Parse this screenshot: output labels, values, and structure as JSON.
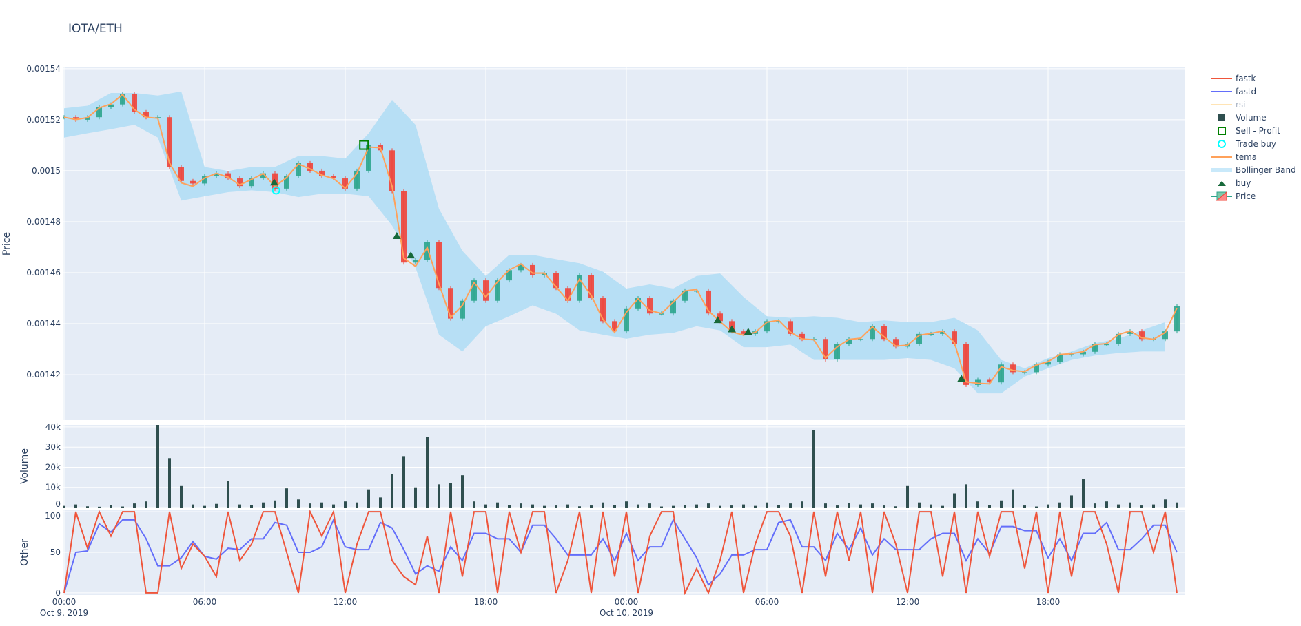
{
  "title": "IOTA/ETH",
  "chart_data": {
    "type": "candlestick",
    "title": "IOTA/ETH",
    "start": "2019-10-09T00:00",
    "interval_minutes": 30,
    "x_ticks": [
      {
        "time": "2019-10-09T00:00",
        "label": "00:00",
        "sublabel": "Oct 9, 2019"
      },
      {
        "time": "2019-10-09T06:00",
        "label": "06:00",
        "sublabel": ""
      },
      {
        "time": "2019-10-09T12:00",
        "label": "12:00",
        "sublabel": ""
      },
      {
        "time": "2019-10-09T18:00",
        "label": "18:00",
        "sublabel": ""
      },
      {
        "time": "2019-10-10T00:00",
        "label": "00:00",
        "sublabel": "Oct 10, 2019"
      },
      {
        "time": "2019-10-10T06:00",
        "label": "06:00",
        "sublabel": ""
      },
      {
        "time": "2019-10-10T12:00",
        "label": "12:00",
        "sublabel": ""
      },
      {
        "time": "2019-10-10T18:00",
        "label": "18:00",
        "sublabel": ""
      }
    ],
    "panels": {
      "price": {
        "ylabel": "Price",
        "ylim": [
          0.0014022,
          0.0015405
        ],
        "ticks": [
          {
            "value": 0.00154,
            "label": "0.00154"
          },
          {
            "value": 0.00152,
            "label": "0.00152"
          },
          {
            "value": 0.0015,
            "label": "0.0015"
          },
          {
            "value": 0.00148,
            "label": "0.00148"
          },
          {
            "value": 0.00146,
            "label": "0.00146"
          },
          {
            "value": 0.00144,
            "label": "0.00144"
          },
          {
            "value": 0.00142,
            "label": "0.00142"
          }
        ]
      },
      "volume": {
        "ylabel": "Volume",
        "ylim": [
          0,
          41000
        ],
        "ticks": [
          {
            "value": 0,
            "label": "0"
          },
          {
            "value": 10000,
            "label": "10k"
          },
          {
            "value": 20000,
            "label": "20k"
          },
          {
            "value": 30000,
            "label": "30k"
          },
          {
            "value": 40000,
            "label": "40k"
          }
        ]
      },
      "other": {
        "ylabel": "Other",
        "ylim": [
          -2.6,
          102.6
        ],
        "ticks": [
          {
            "value": 0,
            "label": "0"
          },
          {
            "value": 50,
            "label": "50"
          },
          {
            "value": 100,
            "label": "100"
          }
        ]
      }
    },
    "close": [
      0.001521,
      0.00152,
      0.001521,
      0.001525,
      0.001526,
      0.00153,
      0.001523,
      0.001521,
      0.001521,
      0.0015015,
      0.001496,
      0.001495,
      0.001498,
      0.001499,
      0.001497,
      0.001494,
      0.001497,
      0.001499,
      0.001493,
      0.001498,
      0.001503,
      0.0015,
      0.001498,
      0.001497,
      0.001493,
      0.0015,
      0.00151,
      0.001508,
      0.001492,
      0.001464,
      0.001465,
      0.001472,
      0.001454,
      0.001442,
      0.001449,
      0.001457,
      0.001449,
      0.001457,
      0.001461,
      0.001463,
      0.001459,
      0.00146,
      0.001454,
      0.001449,
      0.001459,
      0.00145,
      0.001441,
      0.001437,
      0.001446,
      0.00145,
      0.001444,
      0.001444,
      0.001449,
      0.001453,
      0.001453,
      0.001444,
      0.001441,
      0.001437,
      0.001436,
      0.001437,
      0.001441,
      0.001441,
      0.001436,
      0.001434,
      0.001434,
      0.001426,
      0.001432,
      0.001434,
      0.001434,
      0.001439,
      0.001434,
      0.001431,
      0.001432,
      0.001436,
      0.001436,
      0.001437,
      0.001432,
      0.001416,
      0.001418,
      0.001417,
      0.001424,
      0.001421,
      0.001421,
      0.001424,
      0.001425,
      0.001428,
      0.001428,
      0.001429,
      0.001432,
      0.001432,
      0.001436,
      0.001437,
      0.001434,
      0.001434,
      0.001437,
      0.001447
    ],
    "bollinger_hourly": {
      "upper": [
        0.0015245,
        0.0015255,
        0.0015305,
        0.0015305,
        0.0015295,
        0.0015311,
        0.0015015,
        0.0014999,
        0.0015015,
        0.0015015,
        0.0015058,
        0.0015058,
        0.0015048,
        0.0015147,
        0.0015278,
        0.001518,
        0.0014851,
        0.0014686,
        0.0014587,
        0.001467,
        0.001467,
        0.0014653,
        0.0014637,
        0.0014604,
        0.0014538,
        0.0014554,
        0.0014538,
        0.0014587,
        0.0014597,
        0.0014505,
        0.0014429,
        0.0014423,
        0.0014429,
        0.0014423,
        0.0014406,
        0.0014413,
        0.0014406,
        0.0014406,
        0.0014423,
        0.0014374,
        0.0014258,
        0.0014225,
        0.0014265,
        0.0014291,
        0.0014324,
        0.0014341,
        0.0014374,
        0.0014406
      ],
      "lower": [
        0.001513,
        0.0015147,
        0.0015163,
        0.001518,
        0.001513,
        0.0014883,
        0.00149,
        0.0014916,
        0.0014923,
        0.0014916,
        0.0014897,
        0.001491,
        0.001491,
        0.00149,
        0.0014785,
        0.001462,
        0.0014357,
        0.0014291,
        0.001439,
        0.0014429,
        0.0014472,
        0.0014439,
        0.0014374,
        0.0014357,
        0.0014341,
        0.0014357,
        0.0014364,
        0.001439,
        0.0014374,
        0.0014308,
        0.0014308,
        0.0014318,
        0.0014258,
        0.0014258,
        0.0014258,
        0.0014258,
        0.0014265,
        0.0014258,
        0.0014225,
        0.0014127,
        0.0014127,
        0.0014193,
        0.0014225,
        0.0014258,
        0.0014275,
        0.0014285,
        0.0014291,
        0.0014291
      ]
    },
    "volume": [
      800,
      1500,
      600,
      400,
      1200,
      500,
      2000,
      3000,
      41000,
      24500,
      11000,
      1500,
      800,
      1800,
      13000,
      1500,
      1200,
      2500,
      3500,
      9500,
      4000,
      2000,
      2500,
      1500,
      3000,
      2500,
      9000,
      5000,
      16500,
      25500,
      10000,
      35000,
      11500,
      12000,
      16000,
      3000,
      1500,
      2500,
      1200,
      2000,
      1500,
      800,
      1000,
      1500,
      600,
      1000,
      2500,
      1200,
      3000,
      1500,
      2000,
      500,
      800,
      1200,
      1500,
      2000,
      800,
      1000,
      1500,
      800,
      2500,
      1200,
      2000,
      3000,
      38500,
      2000,
      1000,
      2200,
      1500,
      2000,
      1000,
      600,
      11000,
      2500,
      1500,
      800,
      7000,
      11500,
      3000,
      1200,
      3500,
      9000,
      1000,
      500,
      1500,
      2500,
      6000,
      14000,
      2000,
      3000,
      1500,
      2500,
      1000,
      1500,
      4000,
      2500
    ],
    "fastk": [
      0,
      100,
      55,
      100,
      70,
      100,
      100,
      0,
      0,
      100,
      30,
      60,
      45,
      20,
      100,
      40,
      60,
      100,
      100,
      50,
      0,
      100,
      70,
      100,
      0,
      60,
      100,
      100,
      40,
      20,
      10,
      70,
      0,
      100,
      20,
      100,
      100,
      0,
      100,
      50,
      100,
      100,
      0,
      40,
      100,
      0,
      100,
      20,
      100,
      0,
      70,
      100,
      100,
      0,
      30,
      0,
      40,
      100,
      0,
      60,
      100,
      100,
      70,
      0,
      100,
      20,
      100,
      40,
      100,
      0,
      100,
      60,
      0,
      100,
      100,
      20,
      100,
      0,
      100,
      45,
      100,
      100,
      30,
      100,
      0,
      100,
      20,
      100,
      100,
      60,
      0,
      100,
      100,
      50,
      100,
      0
    ],
    "markers": {
      "buy": [
        {
          "time": "2019-10-09T08:58",
          "price": 0.0014956
        },
        {
          "time": "2019-10-09T14:12",
          "price": 0.0014746
        },
        {
          "time": "2019-10-09T14:48",
          "price": 0.001467
        },
        {
          "time": "2019-10-10T03:54",
          "price": 0.0014416
        },
        {
          "time": "2019-10-10T04:30",
          "price": 0.001438
        },
        {
          "time": "2019-10-10T05:12",
          "price": 0.001437
        },
        {
          "time": "2019-10-10T14:18",
          "price": 0.0014186
        }
      ],
      "trade_buy": [
        {
          "time": "2019-10-09T09:03",
          "price": 0.0014923
        }
      ],
      "sell_profit": [
        {
          "time": "2019-10-09T12:48",
          "price": 0.0015101
        }
      ]
    },
    "colors": {
      "increasing": "#2ca58d",
      "decreasing": "#f0443a",
      "tema": "#ffa15a",
      "bollinger": "#b7dff5",
      "volume": "#2f4f4f",
      "fastk": "#ef553b",
      "fastd": "#636efa",
      "rsi": "#ffe4b5",
      "buy": "#17693a",
      "sell_profit": "#008000",
      "trade_buy": "#00ffff",
      "plot_bg": "#e5ecf6"
    },
    "legend": {
      "position": "right",
      "items": [
        {
          "name": "fastk",
          "symbol": "line",
          "color": "#ef553b"
        },
        {
          "name": "fastd",
          "symbol": "line",
          "color": "#636efa"
        },
        {
          "name": "rsi",
          "symbol": "line",
          "color": "#ffe4b5",
          "hidden": true
        },
        {
          "name": "Volume",
          "symbol": "square",
          "color": "#2f4f4f"
        },
        {
          "name": "Sell - Profit",
          "symbol": "square-open",
          "color": "#008000"
        },
        {
          "name": "Trade buy",
          "symbol": "circle-open",
          "color": "#00ffff"
        },
        {
          "name": "tema",
          "symbol": "line",
          "color": "#ffa15a"
        },
        {
          "name": "Bollinger Band",
          "symbol": "band",
          "color": "#c9e9fa"
        },
        {
          "name": "buy",
          "symbol": "triangle",
          "color": "#17693a"
        },
        {
          "name": "Price",
          "symbol": "candle",
          "color": "#2ca58d"
        }
      ]
    }
  }
}
